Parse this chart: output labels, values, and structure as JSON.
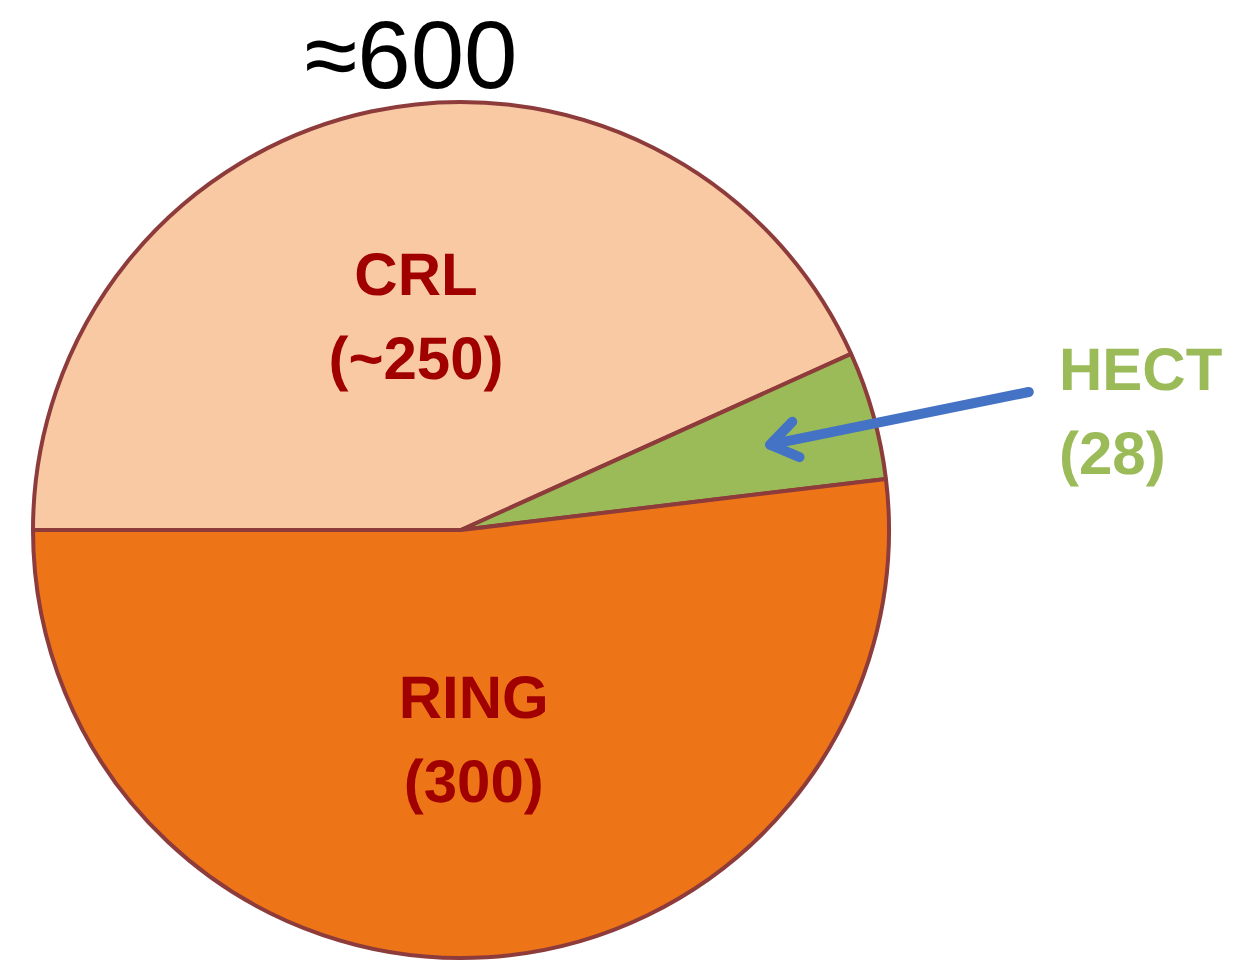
{
  "chart_data": {
    "type": "pie",
    "title": "≈600",
    "categories": [
      "CRL",
      "HECT",
      "RING"
    ],
    "values": [
      250,
      28,
      300
    ],
    "value_labels": [
      "(~250)",
      "(28)",
      "(300)"
    ],
    "colors": [
      "#f9c9a4",
      "#9bbb59",
      "#ee7418"
    ],
    "legend": false
  }
}
